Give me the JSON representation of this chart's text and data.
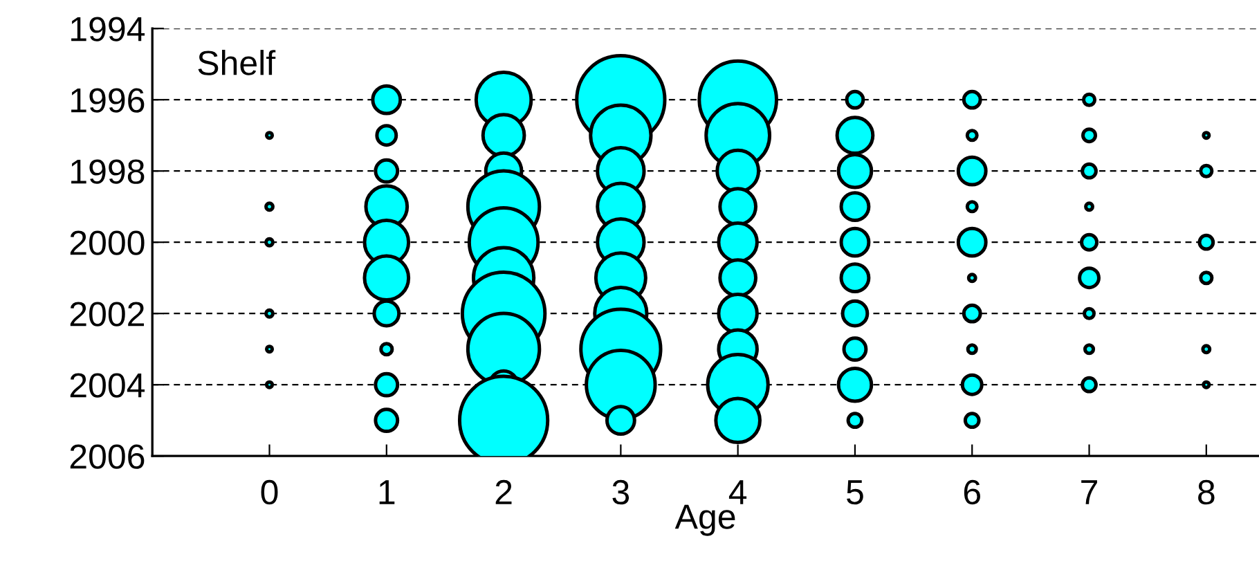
{
  "chart_data": {
    "type": "bubble",
    "annotations": [
      "Shelf"
    ],
    "xlabel": "Age",
    "xlim": [
      -1,
      8.45
    ],
    "xticks": [
      0,
      1,
      2,
      3,
      4,
      5,
      6,
      7,
      8
    ],
    "ylim": [
      2006,
      1994
    ],
    "yticks": [
      1994,
      1996,
      1998,
      2000,
      2002,
      2004,
      2006
    ],
    "grid": "y",
    "legend": false,
    "series": [
      {
        "color": "#00ffff",
        "x": [
          0,
          0,
          0,
          0,
          0,
          0,
          1,
          1,
          1,
          1,
          1,
          1,
          1,
          1,
          1,
          1,
          2,
          2,
          2,
          2,
          2,
          2,
          2,
          2,
          2,
          2,
          3,
          3,
          3,
          3,
          3,
          3,
          3,
          3,
          3,
          3,
          4,
          4,
          4,
          4,
          4,
          4,
          4,
          4,
          4,
          4,
          5,
          5,
          5,
          5,
          5,
          5,
          5,
          5,
          5,
          5,
          6,
          6,
          6,
          6,
          6,
          6,
          6,
          6,
          6,
          6,
          7,
          7,
          7,
          7,
          7,
          7,
          7,
          7,
          7,
          8,
          8,
          8,
          8,
          8,
          8
        ],
        "values": [
          1997,
          1999,
          2000,
          2002,
          2003,
          2004,
          1996,
          1997,
          1998,
          1999,
          2000,
          2001,
          2002,
          2003,
          2004,
          2005,
          1996,
          1997,
          1998,
          1999,
          2000,
          2001,
          2002,
          2003,
          2004,
          2005,
          1996,
          1997,
          1998,
          1999,
          2000,
          2001,
          2002,
          2003,
          2004,
          2005,
          1996,
          1997,
          1998,
          1999,
          2000,
          2001,
          2002,
          2003,
          2004,
          2005,
          1996,
          1997,
          1998,
          1999,
          2000,
          2001,
          2002,
          2003,
          2004,
          2005,
          1996,
          1997,
          1998,
          1999,
          2000,
          2001,
          2002,
          2003,
          2004,
          2005,
          1996,
          1997,
          1998,
          1999,
          2000,
          2001,
          2002,
          2003,
          2004,
          1997,
          1998,
          2000,
          2001,
          2003,
          2004
        ],
        "sizes": [
          0.004,
          0.006,
          0.006,
          0.006,
          0.004,
          0.004,
          0.098,
          0.048,
          0.0625,
          0.22,
          0.25,
          0.25,
          0.079,
          0.016,
          0.0625,
          0.0625,
          0.39,
          0.22,
          0.165,
          0.66,
          0.61,
          0.47,
          0.88,
          0.66,
          0.098,
          1,
          1,
          0.47,
          0.28,
          0.28,
          0.28,
          0.32,
          0.35,
          0.82,
          0.61,
          0.098,
          0.77,
          0.52,
          0.22,
          0.165,
          0.19,
          0.165,
          0.19,
          0.19,
          0.47,
          0.25,
          0.035,
          0.165,
          0.14,
          0.098,
          0.098,
          0.098,
          0.079,
          0.0625,
          0.14,
          0.024,
          0.035,
          0.012,
          0.098,
          0.012,
          0.098,
          0.006,
          0.035,
          0.009,
          0.048,
          0.024,
          0.016,
          0.02,
          0.024,
          0.006,
          0.03,
          0.048,
          0.012,
          0.009,
          0.024,
          0.004,
          0.016,
          0.024,
          0.016,
          0.006,
          0.004
        ]
      }
    ]
  }
}
